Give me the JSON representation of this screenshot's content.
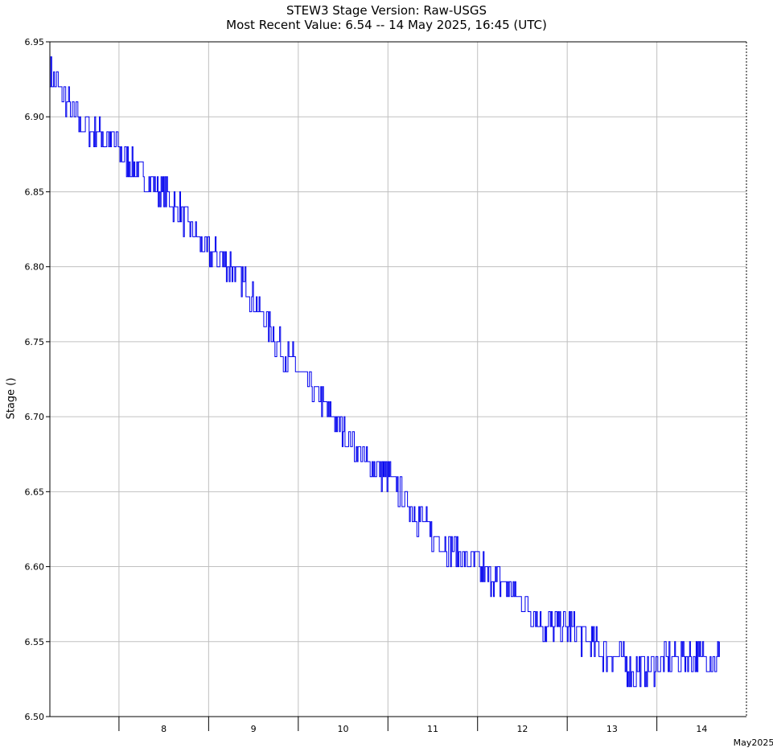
{
  "chart_data": {
    "type": "line",
    "title": "STEW3  Stage  Version: Raw-USGS",
    "subtitle": "Most Recent Value: 6.54  --  14 May 2025, 16:45 (UTC)",
    "ylabel": "Stage ()",
    "xlabel": "",
    "x_unit_label": "May2025",
    "xlim": [
      "2025-05-07T05:30",
      "2025-05-14T23:59"
    ],
    "ylim": [
      6.5,
      6.95
    ],
    "yticks": [
      "6.50",
      "6.55",
      "6.60",
      "6.65",
      "6.70",
      "6.75",
      "6.80",
      "6.85",
      "6.90",
      "6.95"
    ],
    "xtick_days": [
      "2025-05-08",
      "2025-05-09",
      "2025-05-10",
      "2025-05-11",
      "2025-05-12",
      "2025-05-13",
      "2025-05-14"
    ],
    "xtick_labels": [
      "8",
      "9",
      "10",
      "11",
      "12",
      "13",
      "14"
    ],
    "grid": true,
    "line_color": "#0000ee",
    "series": [
      {
        "x": [
          "2025-05-07 05:30",
          "2025-05-07 12:00",
          "2025-05-07 18:00",
          "2025-05-08 00:00",
          "2025-05-08 06:00",
          "2025-05-08 12:00",
          "2025-05-08 18:00",
          "2025-05-09 00:00",
          "2025-05-09 06:00",
          "2025-05-09 12:00",
          "2025-05-09 18:00",
          "2025-05-10 00:00",
          "2025-05-10 06:00",
          "2025-05-10 12:00",
          "2025-05-10 18:00",
          "2025-05-11 00:00",
          "2025-05-11 06:00",
          "2025-05-11 12:00",
          "2025-05-11 18:00",
          "2025-05-12 00:00",
          "2025-05-12 06:00",
          "2025-05-12 12:00",
          "2025-05-12 18:00",
          "2025-05-13 00:00",
          "2025-05-13 06:00",
          "2025-05-13 12:00",
          "2025-05-13 18:00",
          "2025-05-14 00:00",
          "2025-05-14 06:00",
          "2025-05-14 12:00",
          "2025-05-14 16:45"
        ],
        "values": [
          6.93,
          6.9,
          6.89,
          6.88,
          6.86,
          6.85,
          6.83,
          6.81,
          6.8,
          6.78,
          6.75,
          6.73,
          6.71,
          6.69,
          6.67,
          6.66,
          6.64,
          6.62,
          6.61,
          6.6,
          6.59,
          6.58,
          6.56,
          6.56,
          6.55,
          6.54,
          6.53,
          6.535,
          6.54,
          6.54,
          6.54
        ]
      }
    ]
  }
}
